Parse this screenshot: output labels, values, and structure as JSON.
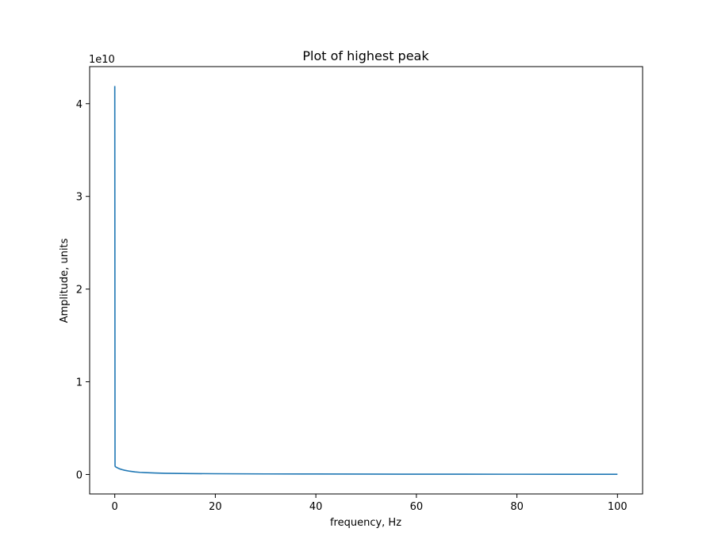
{
  "chart_data": {
    "type": "line",
    "title": "Plot of highest peak",
    "xlabel": "frequency, Hz",
    "ylabel": "Amplitude, units",
    "y_offset_text": "1e10",
    "xlim": [
      -5,
      105
    ],
    "ylim": [
      -0.21,
      4.4
    ],
    "x_ticks": [
      0,
      20,
      40,
      60,
      80,
      100
    ],
    "x_tick_labels": [
      "0",
      "20",
      "40",
      "60",
      "80",
      "100"
    ],
    "y_ticks": [
      0,
      1,
      2,
      3,
      4
    ],
    "y_tick_labels": [
      "0",
      "1",
      "2",
      "3",
      "4"
    ],
    "grid": false,
    "legend": "none",
    "line_color": "#1f77b4",
    "series": [
      {
        "x": [
          0,
          0.05,
          0.1,
          0.3,
          0.6,
          1,
          1.5,
          2,
          3,
          4,
          5,
          6,
          8,
          10,
          15,
          20,
          30,
          40,
          50,
          60,
          70,
          80,
          90,
          100
        ],
        "y": [
          4.19,
          0.095,
          0.085,
          0.078,
          0.07,
          0.06,
          0.052,
          0.045,
          0.035,
          0.028,
          0.023,
          0.02,
          0.016,
          0.013,
          0.01,
          0.008,
          0.006,
          0.005,
          0.004,
          0.0035,
          0.003,
          0.0028,
          0.0025,
          0.0022
        ]
      }
    ]
  }
}
